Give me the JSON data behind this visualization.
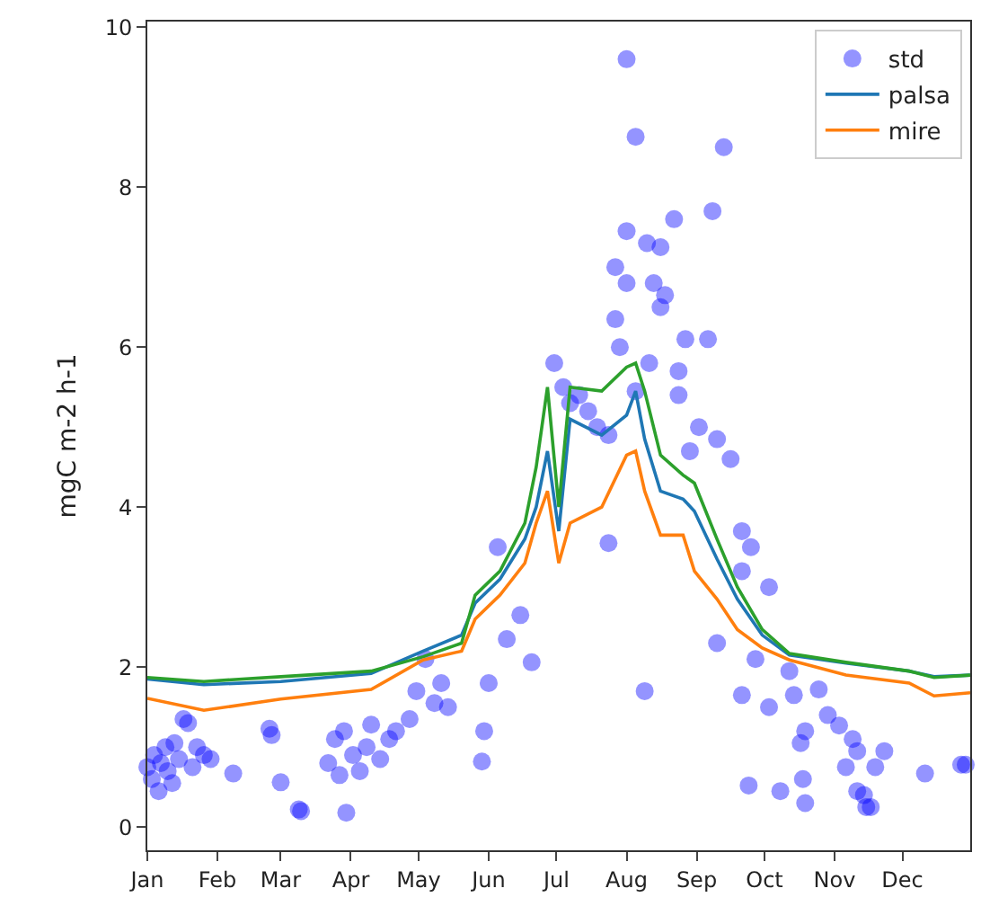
{
  "chart_data": {
    "type": "line",
    "ylabel": "mgC m-2 h-1",
    "xlim": [
      "--01-01",
      "--12-31"
    ],
    "ylim": [
      -0.29,
      10.07
    ],
    "xticks": [
      {
        "value": "--01-01",
        "label": "Jan"
      },
      {
        "value": "--02-01",
        "label": "Feb"
      },
      {
        "value": "--03-01",
        "label": "Mar"
      },
      {
        "value": "--04-01",
        "label": "Apr"
      },
      {
        "value": "--05-01",
        "label": "May"
      },
      {
        "value": "--06-01",
        "label": "Jun"
      },
      {
        "value": "--07-01",
        "label": "Jul"
      },
      {
        "value": "--08-01",
        "label": "Aug"
      },
      {
        "value": "--09-01",
        "label": "Sep"
      },
      {
        "value": "--10-01",
        "label": "Oct"
      },
      {
        "value": "--11-01",
        "label": "Nov"
      },
      {
        "value": "--12-01",
        "label": "Dec"
      }
    ],
    "yticks": [
      0,
      2,
      4,
      6,
      8,
      10
    ],
    "grid": false,
    "legend": "top right",
    "series": [
      {
        "name": "std",
        "type": "scatter",
        "marker": "circle",
        "color": "#0000ff",
        "x": [
          "--01-01",
          "--01-03",
          "--01-04",
          "--01-06",
          "--01-07",
          "--01-09",
          "--01-10",
          "--01-12",
          "--01-13",
          "--01-15",
          "--01-17",
          "--01-19",
          "--01-21",
          "--01-23",
          "--01-26",
          "--01-29",
          "--02-08",
          "--02-24",
          "--02-25",
          "--03-01",
          "--03-09",
          "--03-10",
          "--03-30",
          "--03-22",
          "--03-25",
          "--03-27",
          "--03-29",
          "--04-02",
          "--04-05",
          "--04-08",
          "--04-10",
          "--04-14",
          "--04-18",
          "--04-21",
          "--04-27",
          "--04-30",
          "--05-04",
          "--05-08",
          "--05-11",
          "--05-14",
          "--05-29",
          "--05-30",
          "--06-01",
          "--06-05",
          "--06-09",
          "--06-15",
          "--06-20",
          "--06-30",
          "--07-04",
          "--07-07",
          "--07-11",
          "--07-15",
          "--07-19",
          "--07-24",
          "--07-24",
          "--08-01",
          "--08-05",
          "--08-05",
          "--09-13",
          "--09-08",
          "--08-22",
          "--08-01",
          "--08-10",
          "--08-16",
          "--07-27",
          "--08-01",
          "--08-13",
          "--08-18",
          "--08-16",
          "--07-27",
          "--07-29",
          "--08-11",
          "--08-27",
          "--09-06",
          "--08-24",
          "--08-24",
          "--09-02",
          "--09-10",
          "--09-16",
          "--08-29",
          "--09-21",
          "--09-25",
          "--09-21",
          "--10-03",
          "--09-10",
          "--08-09",
          "--09-27",
          "--09-21",
          "--10-03",
          "--10-12",
          "--10-14",
          "--10-17",
          "--10-19",
          "--10-25",
          "--10-29",
          "--11-03",
          "--11-09",
          "--11-11",
          "--11-19",
          "--11-23",
          "--09-24",
          "--10-08",
          "--10-18",
          "--10-19",
          "--11-06",
          "--11-11",
          "--11-14",
          "--11-17",
          "--11-15",
          "--12-11",
          "--12-27",
          "--12-29"
        ],
        "values": [
          0.75,
          0.6,
          0.9,
          0.45,
          0.8,
          1.0,
          0.7,
          0.55,
          1.05,
          0.85,
          1.35,
          1.3,
          0.75,
          1.0,
          0.9,
          0.85,
          0.67,
          1.23,
          1.15,
          0.56,
          0.22,
          0.2,
          0.18,
          0.8,
          1.1,
          0.65,
          1.2,
          0.9,
          0.7,
          1.0,
          1.28,
          0.85,
          1.1,
          1.2,
          1.35,
          1.7,
          2.1,
          1.55,
          1.8,
          1.5,
          0.82,
          1.2,
          1.8,
          3.5,
          2.35,
          2.65,
          2.06,
          5.8,
          5.5,
          5.3,
          5.4,
          5.2,
          5.0,
          4.9,
          3.55,
          9.6,
          8.63,
          5.45,
          8.5,
          7.7,
          7.6,
          7.45,
          7.3,
          7.25,
          7.0,
          6.8,
          6.8,
          6.65,
          6.5,
          6.35,
          6.0,
          5.8,
          6.1,
          6.1,
          5.7,
          5.4,
          5.0,
          4.85,
          4.6,
          4.7,
          3.7,
          3.5,
          3.2,
          3.0,
          2.3,
          1.7,
          2.1,
          1.65,
          1.5,
          1.95,
          1.65,
          1.05,
          1.2,
          1.72,
          1.4,
          1.27,
          1.1,
          0.95,
          0.75,
          0.95,
          0.52,
          0.45,
          0.6,
          0.3,
          0.75,
          0.45,
          0.4,
          0.25,
          0.25,
          0.67,
          0.78,
          0.78
        ]
      },
      {
        "name": "palsa",
        "marker": "none",
        "color": "#1f77b4",
        "x": [
          "--01-01",
          "--01-26",
          "--03-01",
          "--04-10",
          "--05-03",
          "--05-20",
          "--05-26",
          "--06-06",
          "--06-17",
          "--06-22",
          "--06-27",
          "--07-02",
          "--07-07",
          "--07-21",
          "--08-01",
          "--08-05",
          "--08-09",
          "--08-16",
          "--08-26",
          "--08-31",
          "--09-10",
          "--09-19",
          "--09-30",
          "--10-12",
          "--11-06",
          "--12-04",
          "--12-15",
          "--12-31"
        ],
        "values": [
          1.85,
          1.78,
          1.82,
          1.92,
          2.2,
          2.4,
          2.8,
          3.1,
          3.6,
          4.0,
          4.7,
          3.7,
          5.1,
          4.9,
          5.15,
          5.45,
          4.85,
          4.2,
          4.1,
          3.95,
          3.35,
          2.85,
          2.4,
          2.15,
          2.05,
          1.95,
          1.88,
          1.9
        ]
      },
      {
        "marker": "none",
        "color": "#2ca02c",
        "x": [
          "--01-01",
          "--01-26",
          "--03-01",
          "--04-10",
          "--05-03",
          "--05-20",
          "--05-26",
          "--06-06",
          "--06-17",
          "--06-22",
          "--06-27",
          "--07-02",
          "--07-07",
          "--07-21",
          "--08-01",
          "--08-05",
          "--08-09",
          "--08-16",
          "--08-26",
          "--08-31",
          "--09-10",
          "--09-19",
          "--09-30",
          "--10-12",
          "--11-06",
          "--12-04",
          "--12-15",
          "--12-31"
        ],
        "values": [
          1.87,
          1.82,
          1.88,
          1.95,
          2.13,
          2.3,
          2.9,
          3.2,
          3.8,
          4.5,
          5.5,
          4.0,
          5.5,
          5.45,
          5.75,
          5.8,
          5.45,
          4.65,
          4.4,
          4.3,
          3.6,
          3.0,
          2.47,
          2.17,
          2.06,
          1.95,
          1.87,
          1.9
        ]
      },
      {
        "name": "mire",
        "marker": "none",
        "color": "#ff7f0e",
        "x": [
          "--01-01",
          "--01-26",
          "--03-01",
          "--04-10",
          "--05-03",
          "--05-20",
          "--05-26",
          "--06-06",
          "--06-17",
          "--06-22",
          "--06-27",
          "--07-02",
          "--07-07",
          "--07-21",
          "--08-01",
          "--08-05",
          "--08-09",
          "--08-16",
          "--08-26",
          "--08-31",
          "--09-10",
          "--09-19",
          "--09-30",
          "--10-12",
          "--11-06",
          "--12-04",
          "--12-15",
          "--12-31"
        ],
        "values": [
          1.61,
          1.46,
          1.6,
          1.72,
          2.09,
          2.2,
          2.6,
          2.9,
          3.3,
          3.8,
          4.2,
          3.3,
          3.8,
          4.0,
          4.65,
          4.7,
          4.2,
          3.65,
          3.65,
          3.2,
          2.85,
          2.47,
          2.24,
          2.09,
          1.9,
          1.8,
          1.64,
          1.68
        ]
      }
    ]
  }
}
